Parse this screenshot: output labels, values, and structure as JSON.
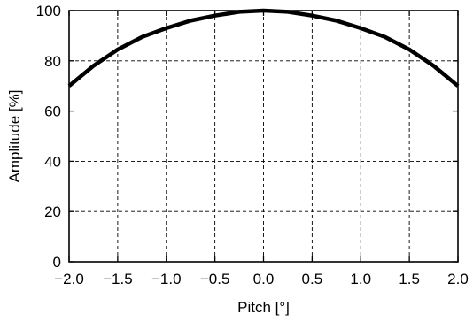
{
  "chart_data": {
    "type": "line",
    "title": "",
    "xlabel": "Pitch [°]",
    "ylabel": "Amplitude [%]",
    "xlim": [
      -2.0,
      2.0
    ],
    "ylim": [
      0,
      100
    ],
    "grid": true,
    "legend": "none",
    "x_ticks": [
      -2.0,
      -1.5,
      -1.0,
      -0.5,
      0.0,
      0.5,
      1.0,
      1.5,
      2.0
    ],
    "x_tick_labels": [
      "−2.0",
      "−1.5",
      "−1.0",
      "−0.5",
      "0.0",
      "0.5",
      "1.0",
      "1.5",
      "2.0"
    ],
    "y_ticks": [
      0,
      20,
      40,
      60,
      80,
      100
    ],
    "y_tick_labels": [
      "0",
      "20",
      "40",
      "60",
      "80",
      "100"
    ],
    "series": [
      {
        "color": "#000000",
        "x": [
          -2.0,
          -1.75,
          -1.5,
          -1.25,
          -1.0,
          -0.75,
          -0.5,
          -0.25,
          0.0,
          0.25,
          0.5,
          0.75,
          1.0,
          1.25,
          1.5,
          1.75,
          2.0
        ],
        "y": [
          70,
          78,
          84.5,
          89.5,
          93,
          96,
          98,
          99.5,
          100,
          99.5,
          98,
          96,
          93,
          89.5,
          84.5,
          78,
          70
        ]
      }
    ]
  }
}
